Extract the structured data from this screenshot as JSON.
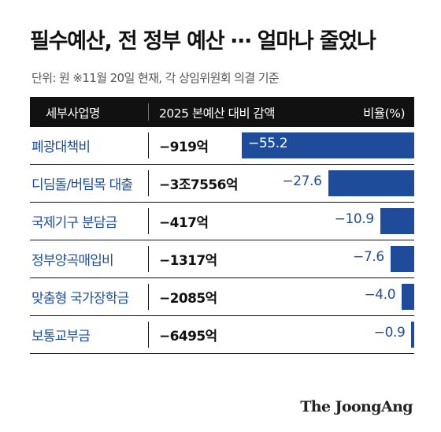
{
  "chart_data": {
    "type": "bar",
    "title": "필수예산, 전 정부 예산 ⋯ 얼마나 줄었나",
    "subtitle": "단위: 원  ※11월 20일 현재, 각 상임위원회 의결 기준",
    "columns": {
      "name": "세부사업명",
      "amount": "2025 본예산 대비 감액",
      "ratio": "비율(%)"
    },
    "categories": [
      "폐광대책비",
      "디딤돌/버팀목 대출",
      "국제기구 분담금",
      "정부양곡매입비",
      "맞춤형 국가장학금",
      "보통교부금"
    ],
    "amounts": [
      "−919억",
      "−3조7556억",
      "−417억",
      "−1317억",
      "−2085억",
      "−6495억"
    ],
    "values": [
      -55.2,
      -27.6,
      -10.9,
      -7.6,
      -4.0,
      -0.9
    ],
    "value_labels": [
      "−55.2",
      "−27.6",
      "−10.9",
      "−7.6",
      "−4.0",
      "−0.9"
    ],
    "orientation": "horizontal",
    "xlim": [
      -60,
      0
    ],
    "grid": false,
    "bar_color": "#1e4c9a"
  },
  "brand": "The JoongAng"
}
